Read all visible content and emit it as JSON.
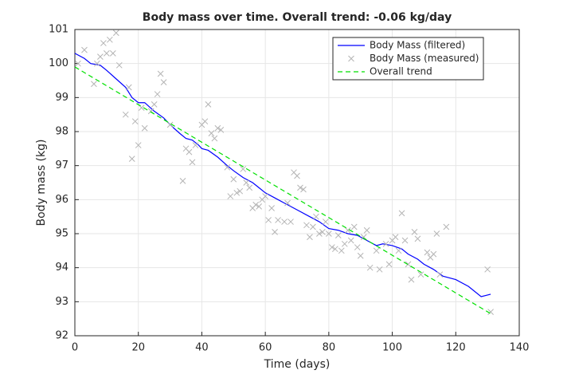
{
  "chart_data": {
    "type": "line",
    "title": "Body mass over time. Overall trend: -0.06 kg/day",
    "xlabel": "Time (days)",
    "ylabel": "Body mass (kg)",
    "xlim": [
      0,
      140
    ],
    "xticks": [
      0,
      20,
      40,
      60,
      80,
      100,
      120,
      140
    ],
    "ylim": [
      92,
      101
    ],
    "yticks": [
      92,
      93,
      94,
      95,
      96,
      97,
      98,
      99,
      100,
      101
    ],
    "grid": true,
    "legend": "upper right",
    "series": [
      {
        "name": "Body Mass (filtered)",
        "color": "#0000ff",
        "linestyle": "solid",
        "marker": "none",
        "x": [
          0,
          3,
          5,
          8,
          10,
          13,
          16,
          18,
          20,
          22,
          25,
          28,
          30,
          33,
          35,
          37,
          39,
          40,
          42,
          45,
          48,
          50,
          53,
          56,
          58,
          60,
          63,
          66,
          70,
          74,
          77,
          80,
          83,
          86,
          89,
          92,
          95,
          97,
          100,
          103,
          105,
          108,
          110,
          113,
          116,
          120,
          124,
          128,
          131
        ],
        "values": [
          100.3,
          100.15,
          100.0,
          99.95,
          99.8,
          99.55,
          99.3,
          99.0,
          98.85,
          98.85,
          98.6,
          98.4,
          98.2,
          97.95,
          97.8,
          97.75,
          97.6,
          97.5,
          97.45,
          97.25,
          97.0,
          96.85,
          96.65,
          96.5,
          96.35,
          96.2,
          96.05,
          95.9,
          95.7,
          95.5,
          95.35,
          95.15,
          95.1,
          95.0,
          94.95,
          94.8,
          94.65,
          94.7,
          94.65,
          94.55,
          94.4,
          94.25,
          94.1,
          93.95,
          93.75,
          93.65,
          93.45,
          93.15,
          93.22
        ]
      },
      {
        "name": "Body Mass (measured)",
        "color": "#b4b4b4",
        "linestyle": "none",
        "marker": "x",
        "x": [
          1,
          3,
          6,
          7,
          8,
          9,
          10,
          11,
          12,
          13,
          14,
          16,
          17,
          18,
          19,
          20,
          21,
          22,
          24,
          25,
          26,
          27,
          28,
          30,
          34,
          35,
          36,
          37,
          38,
          40,
          41,
          42,
          43,
          44,
          45,
          46,
          48,
          49,
          50,
          51,
          52,
          53,
          54,
          55,
          56,
          57,
          58,
          59,
          60,
          61,
          62,
          63,
          64,
          66,
          67,
          68,
          69,
          70,
          71,
          72,
          73,
          74,
          75,
          76,
          77,
          78,
          79,
          80,
          81,
          82,
          83,
          84,
          85,
          86,
          87,
          88,
          89,
          90,
          91,
          92,
          93,
          95,
          96,
          98,
          99,
          100,
          101,
          102,
          103,
          104,
          105,
          106,
          107,
          108,
          109,
          111,
          112,
          113,
          114,
          115,
          117,
          130,
          131
        ],
        "values": [
          100.0,
          100.4,
          99.4,
          100.0,
          100.2,
          100.6,
          100.3,
          100.7,
          100.3,
          100.9,
          99.95,
          98.5,
          99.3,
          97.2,
          98.3,
          97.6,
          98.7,
          98.1,
          98.6,
          98.8,
          99.1,
          99.7,
          99.45,
          98.2,
          96.55,
          97.5,
          97.4,
          97.1,
          97.6,
          98.2,
          98.3,
          98.8,
          97.95,
          97.8,
          98.1,
          98.05,
          96.95,
          96.1,
          96.6,
          96.2,
          96.25,
          96.9,
          96.5,
          96.35,
          95.75,
          95.85,
          95.8,
          96.0,
          96.1,
          95.4,
          95.75,
          95.05,
          95.4,
          95.35,
          95.9,
          95.35,
          96.8,
          96.7,
          96.35,
          96.3,
          95.25,
          94.9,
          95.2,
          95.5,
          95.0,
          95.05,
          95.35,
          95.0,
          94.6,
          94.55,
          94.95,
          94.5,
          94.7,
          95.1,
          94.8,
          95.2,
          94.6,
          94.35,
          94.9,
          95.1,
          94.0,
          94.5,
          93.95,
          94.7,
          94.1,
          94.8,
          94.9,
          94.5,
          95.6,
          94.8,
          94.1,
          93.65,
          95.05,
          94.85,
          93.8,
          94.45,
          94.3,
          94.4,
          95.0,
          93.8,
          95.2,
          93.95,
          92.7
        ]
      },
      {
        "name": "Overall trend",
        "color": "#00e000",
        "linestyle": "dashed",
        "marker": "none",
        "x": [
          0,
          131
        ],
        "values": [
          99.9,
          92.65
        ]
      }
    ]
  }
}
